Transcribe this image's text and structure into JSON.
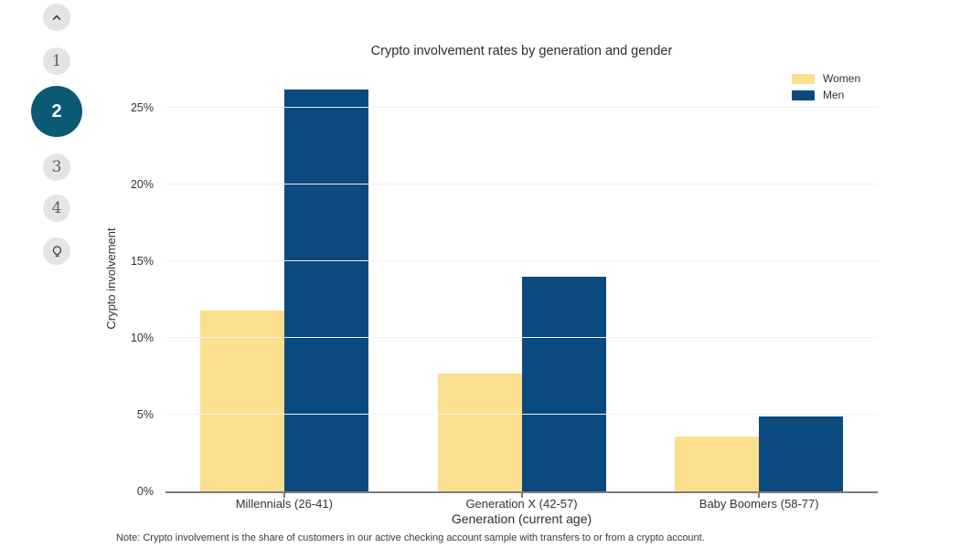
{
  "sidebar": {
    "collapse_icon": "chevron-up-icon",
    "insight_icon": "lightbulb-icon",
    "steps": [
      {
        "label": "1",
        "active": false
      },
      {
        "label": "2",
        "active": true
      },
      {
        "label": "3",
        "active": false
      },
      {
        "label": "4",
        "active": false
      }
    ]
  },
  "chart_data": {
    "type": "bar",
    "title": "Crypto involvement rates by generation and gender",
    "categories": [
      "Millennials (26-41)",
      "Generation X (42-57)",
      "Baby Boomers (58-77)"
    ],
    "series": [
      {
        "name": "Women",
        "color": "#fbdf8e",
        "values": [
          11.8,
          7.7,
          3.6
        ]
      },
      {
        "name": "Men",
        "color": "#0b4a7e",
        "values": [
          26.2,
          14.0,
          4.9
        ]
      }
    ],
    "xlabel": "Generation (current age)",
    "ylabel": "Crypto involvement",
    "ylim": [
      0,
      26.2
    ],
    "ytick_values": [
      0,
      5,
      10,
      15,
      20,
      25
    ],
    "ytick_labels": [
      "0%",
      "5%",
      "10%",
      "15%",
      "20%",
      "25%"
    ],
    "grid": "horizontal",
    "legend_position": "top-right"
  },
  "note": "Note: Crypto involvement is the share of customers in our active checking account sample with transfers to or from a crypto account.",
  "colors": {
    "accent_active": "#0b5a73",
    "nav_circle": "#e4e4e4",
    "axis": "#7d7d7d",
    "gridline": "#f1f1f1"
  }
}
